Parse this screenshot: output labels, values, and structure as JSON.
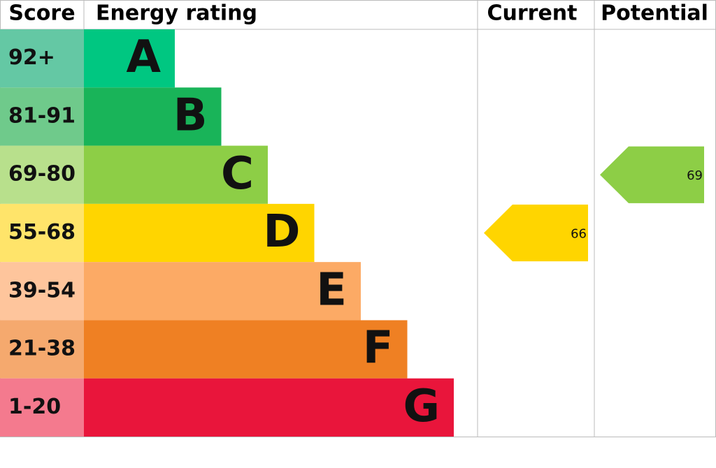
{
  "chart_data": {
    "type": "epc",
    "headers": {
      "score": "Score",
      "rating": "Energy rating",
      "current": "Current",
      "potential": "Potential"
    },
    "bands": [
      {
        "score": "92+",
        "letter": "A",
        "color": "#00c781",
        "score_color": "#64c8a4"
      },
      {
        "score": "81-91",
        "letter": "B",
        "color": "#19b459",
        "score_color": "#6fca8b"
      },
      {
        "score": "69-80",
        "letter": "C",
        "color": "#8dce46",
        "score_color": "#b8e08c"
      },
      {
        "score": "55-68",
        "letter": "D",
        "color": "#ffd500",
        "score_color": "#ffe46a"
      },
      {
        "score": "39-54",
        "letter": "E",
        "color": "#fcaa65",
        "score_color": "#fec59c"
      },
      {
        "score": "21-38",
        "letter": "F",
        "color": "#ef8023",
        "score_color": "#f5a96e"
      },
      {
        "score": "1-20",
        "letter": "G",
        "color": "#e9153b",
        "score_color": "#f47a8e"
      }
    ],
    "current": 66,
    "potential": 69
  }
}
